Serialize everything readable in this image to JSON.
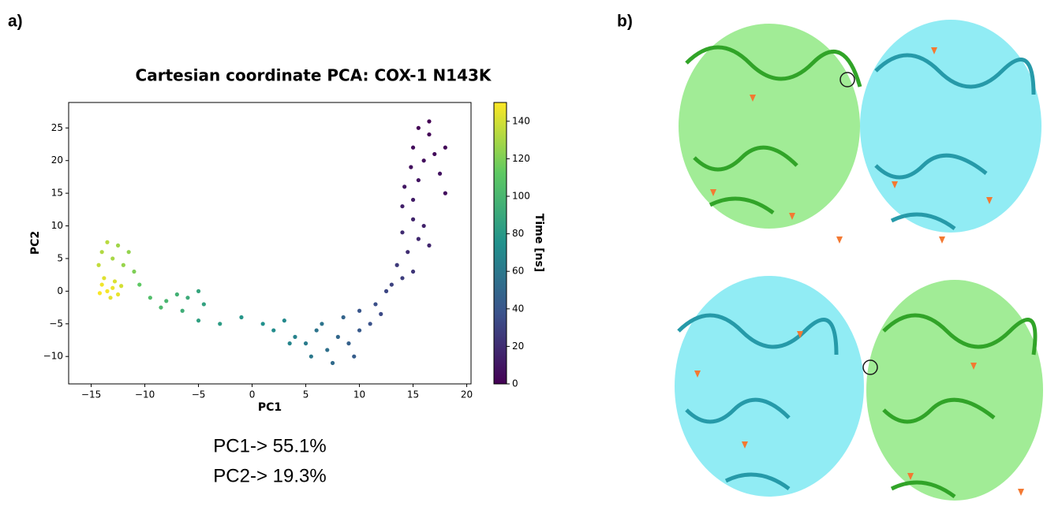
{
  "panel_labels": [
    "a)",
    "b)"
  ],
  "annotations": [
    "PC1-> 55.1%",
    "PC2-> 19.3%"
  ],
  "chart_data": {
    "type": "scatter",
    "title": "Cartesian coordinate PCA: COX-1 N143K",
    "x_label": "PC1",
    "y_label": "PC2",
    "colorbar_label": "Time [ns]",
    "xlim": [
      -17.1,
      20.4
    ],
    "ylim": [
      -14.2,
      28.9
    ],
    "xticks": [
      {
        "value": -15,
        "label": "−15"
      },
      {
        "value": -10,
        "label": "−10"
      },
      {
        "value": -5,
        "label": "−5"
      },
      0,
      5,
      10,
      15,
      20
    ],
    "yticks": [
      {
        "value": -10,
        "label": "−10"
      },
      {
        "value": -5,
        "label": "−5"
      },
      0,
      5,
      10,
      15,
      20,
      25
    ],
    "clim": [
      0,
      150
    ],
    "cticks": [
      0,
      20,
      40,
      60,
      80,
      100,
      120,
      140
    ],
    "colormap": [
      "#440154",
      "#3b528b",
      "#21918c",
      "#5ec962",
      "#fde725"
    ],
    "x": [
      -13.5,
      -13,
      -12.5,
      -14,
      -13.2,
      -12.8,
      -14.2,
      -12.2,
      -13.8,
      -13,
      -12.5,
      -14,
      -11.5,
      -12,
      -13.5,
      -11,
      -14.3,
      -10.5,
      -9.5,
      -8,
      -7,
      -6,
      -5,
      -4.5,
      -8.5,
      -6.5,
      -5,
      -3,
      -1,
      1,
      2,
      3,
      4,
      5,
      6,
      5.5,
      7,
      6.5,
      8,
      9,
      8.5,
      10,
      11,
      10,
      11.5,
      12,
      9.5,
      7.5,
      3.5,
      12.5,
      13,
      14,
      13.5,
      15,
      14.5,
      15.5,
      16,
      15,
      14,
      16.5,
      15,
      14.2,
      15.5,
      14.8,
      16,
      15,
      17,
      18,
      16.5,
      15.5,
      17.5,
      14,
      18,
      16.5
    ],
    "y": [
      0,
      0.5,
      -0.5,
      1,
      -1,
      1.5,
      -0.3,
      0.8,
      2,
      5,
      7,
      6,
      6,
      4,
      7.5,
      3,
      4,
      1,
      -1,
      -1.5,
      -0.5,
      -1,
      0,
      -2,
      -2.5,
      -3,
      -4.5,
      -5,
      -4,
      -5,
      -6,
      -4.5,
      -7,
      -8,
      -6,
      -10,
      -9,
      -5,
      -7,
      -8,
      -4,
      -6,
      -5,
      -3,
      -2,
      -3.5,
      -10,
      -11,
      -8,
      0,
      1,
      2,
      4,
      3,
      6,
      8,
      10,
      11,
      9,
      7,
      14,
      16,
      17,
      19,
      20,
      22,
      21,
      22,
      24,
      25,
      18,
      13,
      15,
      26
    ],
    "color_values": [
      148,
      146,
      145,
      147,
      144,
      142,
      149,
      140,
      143,
      130,
      128,
      132,
      125,
      126,
      134,
      120,
      136,
      112,
      105,
      100,
      96,
      92,
      88,
      86,
      102,
      94,
      85,
      82,
      78,
      75,
      72,
      70,
      66,
      62,
      58,
      60,
      55,
      57,
      50,
      46,
      48,
      42,
      38,
      40,
      36,
      34,
      44,
      52,
      68,
      32,
      30,
      28,
      26,
      24,
      20,
      18,
      15,
      16,
      19,
      17,
      12,
      10,
      9,
      7,
      6,
      5,
      4,
      3,
      2,
      1,
      8,
      14,
      6,
      0
    ]
  }
}
